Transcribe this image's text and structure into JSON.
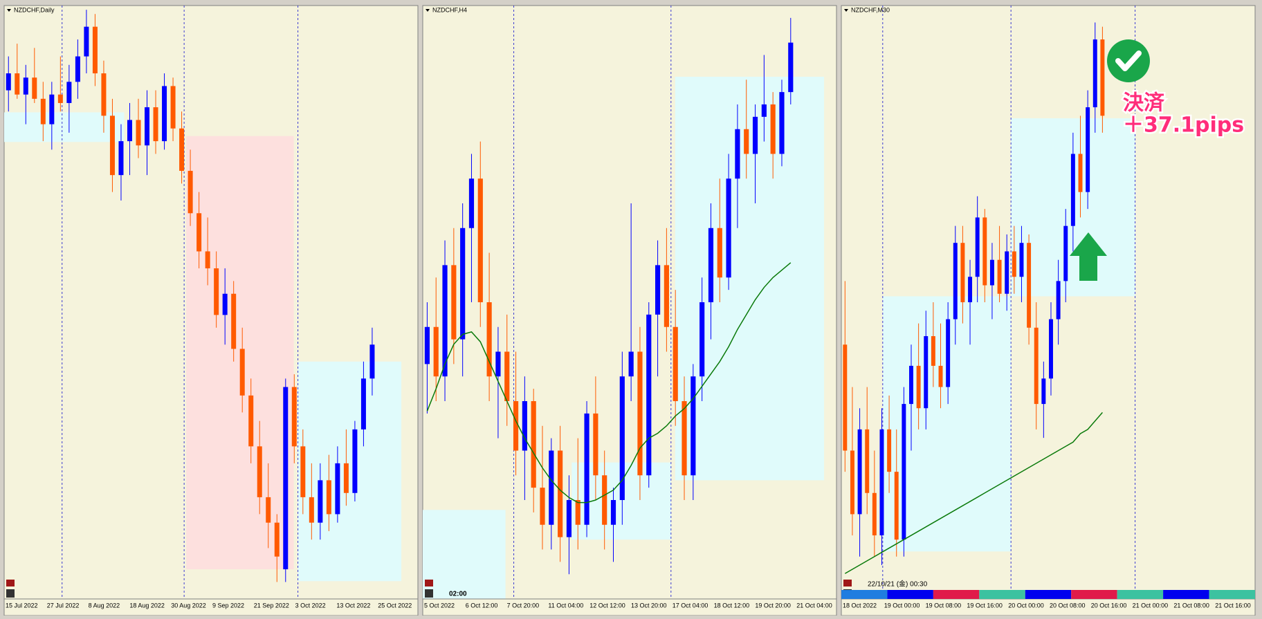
{
  "chart_data": [
    {
      "type": "candlestick",
      "title": "NZDCHF,Daily",
      "x_labels": [
        "15 Jul 2022",
        "27 Jul 2022",
        "8 Aug 2022",
        "18 Aug 2022",
        "30 Aug 2022",
        "9 Sep 2022",
        "21 Sep 2022",
        "3 Oct 2022",
        "13 Oct 2022",
        "25 Oct 2022"
      ],
      "ylim": [
        0.54,
        0.61
      ],
      "up_color": "#0000ff",
      "down_color": "#ff5a00",
      "values": [
        [
          0.6,
          0.604,
          0.5975,
          0.602
        ],
        [
          0.602,
          0.6055,
          0.599,
          0.5995
        ],
        [
          0.5995,
          0.603,
          0.596,
          0.6015
        ],
        [
          0.6015,
          0.605,
          0.5985,
          0.599
        ],
        [
          0.599,
          0.601,
          0.594,
          0.596
        ],
        [
          0.596,
          0.601,
          0.593,
          0.5995
        ],
        [
          0.5995,
          0.604,
          0.5975,
          0.5985
        ],
        [
          0.5985,
          0.603,
          0.595,
          0.601
        ],
        [
          0.601,
          0.606,
          0.599,
          0.604
        ],
        [
          0.604,
          0.6095,
          0.602,
          0.6075
        ],
        [
          0.6075,
          0.609,
          0.6005,
          0.602
        ],
        [
          0.602,
          0.6035,
          0.595,
          0.597
        ],
        [
          0.597,
          0.599,
          0.588,
          0.59
        ],
        [
          0.59,
          0.596,
          0.587,
          0.594
        ],
        [
          0.594,
          0.5985,
          0.59,
          0.5965
        ],
        [
          0.5965,
          0.599,
          0.592,
          0.5935
        ],
        [
          0.5935,
          0.6,
          0.59,
          0.598
        ],
        [
          0.598,
          0.6,
          0.5925,
          0.594
        ],
        [
          0.594,
          0.602,
          0.593,
          0.6005
        ],
        [
          0.6005,
          0.6015,
          0.594,
          0.5955
        ],
        [
          0.5955,
          0.5975,
          0.589,
          0.5905
        ],
        [
          0.5905,
          0.593,
          0.584,
          0.5855
        ],
        [
          0.5855,
          0.588,
          0.579,
          0.581
        ],
        [
          0.581,
          0.585,
          0.577,
          0.579
        ],
        [
          0.579,
          0.581,
          0.572,
          0.5735
        ],
        [
          0.5735,
          0.579,
          0.57,
          0.576
        ],
        [
          0.576,
          0.5775,
          0.568,
          0.5695
        ],
        [
          0.5695,
          0.572,
          0.562,
          0.564
        ],
        [
          0.564,
          0.566,
          0.556,
          0.558
        ],
        [
          0.558,
          0.561,
          0.55,
          0.552
        ],
        [
          0.552,
          0.556,
          0.546,
          0.549
        ],
        [
          0.549,
          0.55,
          0.542,
          0.545
        ],
        [
          0.5435,
          0.566,
          0.542,
          0.565
        ],
        [
          0.565,
          0.5665,
          0.556,
          0.558
        ],
        [
          0.558,
          0.56,
          0.55,
          0.552
        ],
        [
          0.552,
          0.556,
          0.547,
          0.549
        ],
        [
          0.549,
          0.556,
          0.547,
          0.554
        ],
        [
          0.554,
          0.557,
          0.548,
          0.55
        ],
        [
          0.55,
          0.558,
          0.549,
          0.556
        ],
        [
          0.556,
          0.56,
          0.551,
          0.5525
        ],
        [
          0.5525,
          0.561,
          0.5515,
          0.56
        ],
        [
          0.56,
          0.568,
          0.558,
          0.566
        ],
        [
          0.566,
          0.572,
          0.564,
          0.57
        ]
      ]
    },
    {
      "type": "candlestick",
      "title": "NZDCHF,H4",
      "label": "02:00",
      "x_labels": [
        "5 Oct 2022",
        "6 Oct 12:00",
        "7 Oct 20:00",
        "11 Oct 04:00",
        "12 Oct 12:00",
        "13 Oct 20:00",
        "17 Oct 04:00",
        "18 Oct 12:00",
        "19 Oct 20:00",
        "21 Oct 04:00"
      ],
      "ylim": [
        0.548,
        0.572
      ],
      "up_color": "#0000ff",
      "down_color": "#ff5a00",
      "ma_color": "#0a7a0a",
      "values": [
        [
          0.5575,
          0.56,
          0.5555,
          0.559
        ],
        [
          0.559,
          0.561,
          0.556,
          0.557
        ],
        [
          0.557,
          0.5625,
          0.556,
          0.5615
        ],
        [
          0.5615,
          0.563,
          0.5575,
          0.5585
        ],
        [
          0.5585,
          0.564,
          0.557,
          0.563
        ],
        [
          0.563,
          0.566,
          0.56,
          0.565
        ],
        [
          0.565,
          0.5665,
          0.559,
          0.56
        ],
        [
          0.56,
          0.562,
          0.556,
          0.557
        ],
        [
          0.557,
          0.559,
          0.5545,
          0.558
        ],
        [
          0.558,
          0.5595,
          0.555,
          0.556
        ],
        [
          0.556,
          0.558,
          0.553,
          0.554
        ],
        [
          0.554,
          0.557,
          0.552,
          0.556
        ],
        [
          0.556,
          0.5565,
          0.5515,
          0.5525
        ],
        [
          0.5525,
          0.555,
          0.55,
          0.551
        ],
        [
          0.551,
          0.5545,
          0.55,
          0.554
        ],
        [
          0.554,
          0.555,
          0.5495,
          0.5505
        ],
        [
          0.5505,
          0.553,
          0.549,
          0.552
        ],
        [
          0.552,
          0.5545,
          0.55,
          0.551
        ],
        [
          0.551,
          0.556,
          0.5505,
          0.5555
        ],
        [
          0.5555,
          0.557,
          0.552,
          0.553
        ],
        [
          0.553,
          0.554,
          0.55,
          0.551
        ],
        [
          0.551,
          0.5525,
          0.5495,
          0.552
        ],
        [
          0.552,
          0.558,
          0.551,
          0.557
        ],
        [
          0.557,
          0.564,
          0.556,
          0.558
        ],
        [
          0.558,
          0.559,
          0.552,
          0.553
        ],
        [
          0.553,
          0.56,
          0.5525,
          0.5595
        ],
        [
          0.5595,
          0.5625,
          0.557,
          0.5615
        ],
        [
          0.5615,
          0.563,
          0.558,
          0.559
        ],
        [
          0.559,
          0.5605,
          0.555,
          0.556
        ],
        [
          0.556,
          0.557,
          0.552,
          0.553
        ],
        [
          0.553,
          0.5575,
          0.552,
          0.557
        ],
        [
          0.557,
          0.561,
          0.556,
          0.56
        ],
        [
          0.56,
          0.564,
          0.5585,
          0.563
        ],
        [
          0.563,
          0.565,
          0.56,
          0.561
        ],
        [
          0.561,
          0.566,
          0.5605,
          0.565
        ],
        [
          0.565,
          0.568,
          0.563,
          0.567
        ],
        [
          0.567,
          0.569,
          0.565,
          0.566
        ],
        [
          0.566,
          0.568,
          0.564,
          0.5675
        ],
        [
          0.5675,
          0.57,
          0.5665,
          0.568
        ],
        [
          0.568,
          0.5685,
          0.565,
          0.566
        ],
        [
          0.566,
          0.569,
          0.5655,
          0.5685
        ],
        [
          0.5685,
          0.5715,
          0.568,
          0.5705
        ]
      ],
      "ma": [
        0.5556,
        0.5565,
        0.5575,
        0.5583,
        0.5587,
        0.5588,
        0.5584,
        0.5576,
        0.5568,
        0.556,
        0.5552,
        0.5545,
        0.5539,
        0.5533,
        0.5528,
        0.5524,
        0.5521,
        0.5519,
        0.5519,
        0.552,
        0.5522,
        0.5524,
        0.5528,
        0.5534,
        0.5541,
        0.5545,
        0.5547,
        0.555,
        0.5554,
        0.5557,
        0.5561,
        0.5566,
        0.5571,
        0.5576,
        0.5582,
        0.5589,
        0.5595,
        0.5601,
        0.5606,
        0.561,
        0.5613,
        0.5616
      ]
    },
    {
      "type": "candlestick",
      "title": "NZDCHF,M30",
      "label": "22/10/21 (金) 00:30",
      "annotation": [
        "決済",
        "＋37.1pips"
      ],
      "x_labels": [
        "18 Oct 2022",
        "19 Oct 00:00",
        "19 Oct 08:00",
        "19 Oct 16:00",
        "20 Oct 00:00",
        "20 Oct 08:00",
        "20 Oct 16:00",
        "21 Oct 00:00",
        "21 Oct 08:00",
        "21 Oct 16:00"
      ],
      "ylim": [
        0.558,
        0.572
      ],
      "up_color": "#0000ff",
      "down_color": "#ff5a00",
      "ma_color": "#0a7a0a",
      "values": [
        [
          0.564,
          0.5655,
          0.561,
          0.5615
        ],
        [
          0.5615,
          0.563,
          0.5595,
          0.56
        ],
        [
          0.56,
          0.5625,
          0.559,
          0.562
        ],
        [
          0.562,
          0.563,
          0.56,
          0.5605
        ],
        [
          0.5605,
          0.5615,
          0.559,
          0.5595
        ],
        [
          0.5595,
          0.5625,
          0.5588,
          0.562
        ],
        [
          0.562,
          0.5628,
          0.5605,
          0.561
        ],
        [
          0.561,
          0.562,
          0.559,
          0.5594
        ],
        [
          0.5594,
          0.563,
          0.559,
          0.5626
        ],
        [
          0.5626,
          0.564,
          0.5615,
          0.5635
        ],
        [
          0.5635,
          0.5645,
          0.562,
          0.5625
        ],
        [
          0.5625,
          0.5648,
          0.562,
          0.5642
        ],
        [
          0.5642,
          0.565,
          0.563,
          0.5635
        ],
        [
          0.5635,
          0.5645,
          0.5625,
          0.563
        ],
        [
          0.563,
          0.565,
          0.5626,
          0.5646
        ],
        [
          0.5646,
          0.5668,
          0.564,
          0.5664
        ],
        [
          0.5664,
          0.5668,
          0.5645,
          0.565
        ],
        [
          0.565,
          0.566,
          0.564,
          0.5656
        ],
        [
          0.5656,
          0.5675,
          0.565,
          0.567
        ],
        [
          0.567,
          0.5672,
          0.565,
          0.5654
        ],
        [
          0.5654,
          0.5664,
          0.5646,
          0.566
        ],
        [
          0.566,
          0.5668,
          0.565,
          0.5652
        ],
        [
          0.5652,
          0.5666,
          0.5648,
          0.5662
        ],
        [
          0.5662,
          0.5668,
          0.5652,
          0.5656
        ],
        [
          0.5656,
          0.5668,
          0.565,
          0.5664
        ],
        [
          0.5664,
          0.5666,
          0.564,
          0.5644
        ],
        [
          0.5644,
          0.565,
          0.562,
          0.5626
        ],
        [
          0.5626,
          0.5636,
          0.5618,
          0.5632
        ],
        [
          0.5632,
          0.565,
          0.5628,
          0.5646
        ],
        [
          0.5646,
          0.566,
          0.564,
          0.5655
        ],
        [
          0.5655,
          0.5672,
          0.565,
          0.5668
        ],
        [
          0.5668,
          0.569,
          0.5662,
          0.5685
        ],
        [
          0.5685,
          0.5694,
          0.567,
          0.5676
        ],
        [
          0.5676,
          0.57,
          0.5672,
          0.5696
        ],
        [
          0.5696,
          0.5716,
          0.569,
          0.5712
        ],
        [
          0.5712,
          0.5715,
          0.569,
          0.5694
        ]
      ],
      "ma": [
        0.5586,
        0.5587,
        0.5588,
        0.5589,
        0.559,
        0.5591,
        0.5592,
        0.5593,
        0.5594,
        0.5595,
        0.5596,
        0.5597,
        0.5598,
        0.5599,
        0.56,
        0.5601,
        0.5602,
        0.5603,
        0.5604,
        0.5605,
        0.5606,
        0.5607,
        0.5608,
        0.5609,
        0.561,
        0.5611,
        0.5612,
        0.5613,
        0.5614,
        0.5615,
        0.5616,
        0.5617,
        0.5619,
        0.562,
        0.5622,
        0.5624
      ]
    }
  ]
}
